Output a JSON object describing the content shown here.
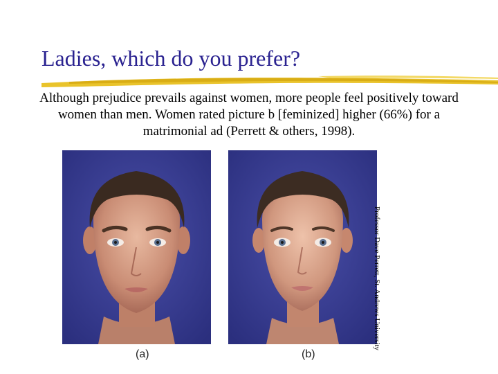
{
  "slide": {
    "title": "Ladies, which do you prefer?",
    "caption": "Although prejudice prevails against women, more people feel positively toward women than men. Women rated picture b [feminized] higher (66%) for a matrimonial ad (Perrett & others, 1998).",
    "credit": "Professor Dave Perrett, St. Andrews University",
    "accent_color": "#e8c020",
    "title_color": "#2a2290"
  },
  "figures": [
    {
      "label": "(a)",
      "icon": "face-photo-masculinized"
    },
    {
      "label": "(b)",
      "icon": "face-photo-feminized"
    }
  ]
}
